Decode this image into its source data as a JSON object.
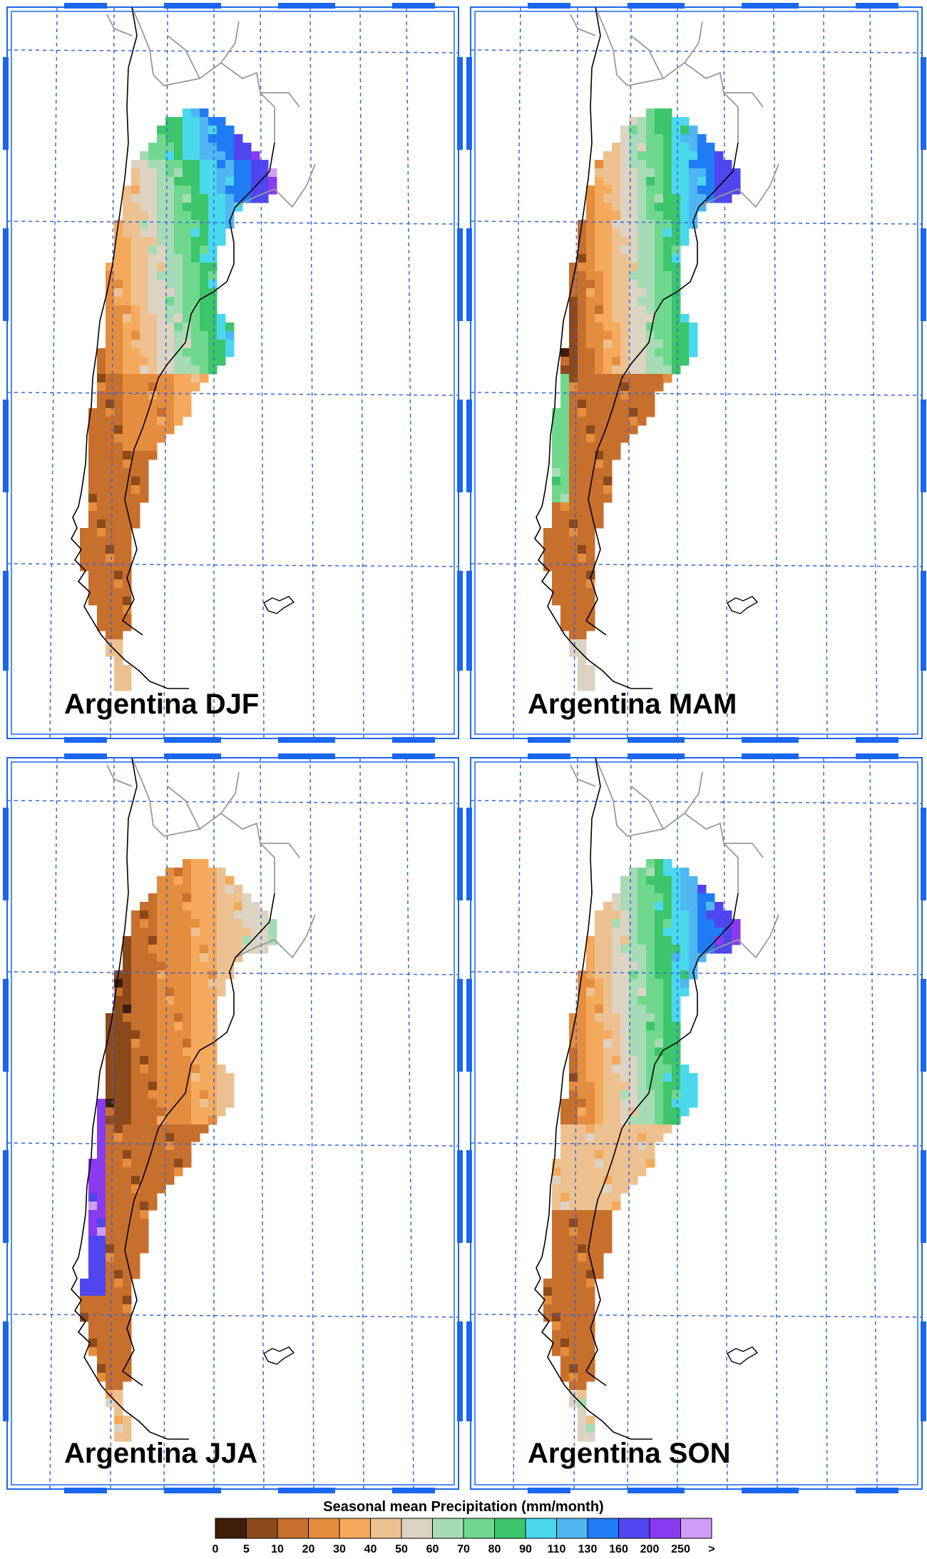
{
  "panels": [
    {
      "title": "Argentina DJF",
      "season": "DJF"
    },
    {
      "title": "Argentina MAM",
      "season": "MAM"
    },
    {
      "title": "Argentina JJA",
      "season": "JJA"
    },
    {
      "title": "Argentina SON",
      "season": "SON"
    }
  ],
  "colorbar": {
    "title": "Seasonal mean Precipitation (mm/month)",
    "labels": [
      "0",
      "5",
      "10",
      "20",
      "30",
      "40",
      "50",
      "60",
      "70",
      "80",
      "90",
      "110",
      "130",
      "160",
      "200",
      "250",
      ">"
    ],
    "colors": [
      "#3d1f08",
      "#8c4a1c",
      "#c76f2c",
      "#e58d3e",
      "#f5a95c",
      "#edc18f",
      "#dcd3c2",
      "#a7dbb5",
      "#6fd88e",
      "#3cc56a",
      "#4ad8ec",
      "#4fb6f2",
      "#1f7cf5",
      "#4f46f0",
      "#8a3bf0",
      "#cf9df5"
    ]
  },
  "map_style": {
    "gridline_color": "#3366dd",
    "frame_color": "#1a66ee",
    "coast_color": "#000000",
    "border_color": "#999999"
  }
}
